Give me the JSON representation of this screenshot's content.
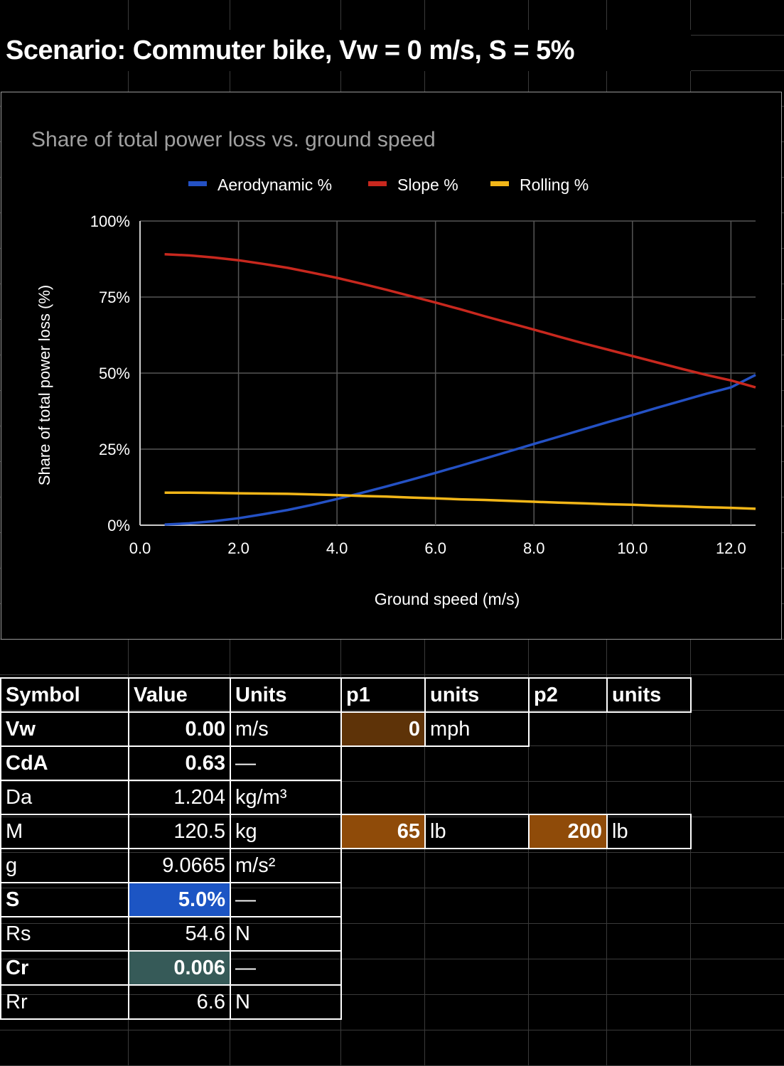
{
  "title": "Scenario: Commuter bike, Vw = 0 m/s, S = 5%",
  "colors": {
    "aero": "#2451c4",
    "slope": "#c8281e",
    "rolling": "#f2b618",
    "axis_text": "#ffffff",
    "chart_title": "#a0a0a0",
    "gridline": "#555555"
  },
  "chart_data": {
    "type": "line",
    "title": "Share of total power loss vs. ground speed",
    "xlabel": "Ground speed (m/s)",
    "ylabel": "Share of total power loss (%)",
    "xlim": [
      0,
      12.5
    ],
    "ylim": [
      0,
      100
    ],
    "x_ticks": [
      "0.0",
      "2.0",
      "4.0",
      "6.0",
      "8.0",
      "10.0",
      "12.0"
    ],
    "y_ticks": [
      "0%",
      "25%",
      "50%",
      "75%",
      "100%"
    ],
    "legend_position": "top",
    "grid": true,
    "x": [
      0.5,
      1,
      1.5,
      2,
      2.5,
      3,
      3.5,
      4,
      4.5,
      5,
      5.5,
      6,
      6.5,
      7,
      7.5,
      8,
      8.5,
      9,
      9.5,
      10,
      10.5,
      11,
      11.5,
      12,
      12.5
    ],
    "series": [
      {
        "name": "Aerodynamic %",
        "color": "#2451c4",
        "values": [
          0.2,
          0.6,
          1.3,
          2.3,
          3.6,
          5.0,
          6.7,
          8.6,
          10.6,
          12.7,
          14.9,
          17.2,
          19.5,
          21.9,
          24.3,
          26.7,
          29.1,
          31.5,
          33.9,
          36.2,
          38.6,
          40.9,
          43.2,
          45.3,
          49.4
        ]
      },
      {
        "name": "Slope %",
        "color": "#c8281e",
        "values": [
          89.1,
          88.7,
          88.0,
          87.1,
          85.9,
          84.6,
          83.0,
          81.3,
          79.4,
          77.4,
          75.3,
          73.2,
          71.0,
          68.7,
          66.5,
          64.3,
          62.0,
          59.8,
          57.7,
          55.6,
          53.5,
          51.4,
          49.4,
          47.6,
          45.3
        ]
      },
      {
        "name": "Rolling %",
        "color": "#f2b618",
        "values": [
          10.7,
          10.7,
          10.6,
          10.5,
          10.4,
          10.3,
          10.1,
          9.9,
          9.6,
          9.4,
          9.1,
          8.8,
          8.5,
          8.3,
          8.0,
          7.7,
          7.4,
          7.2,
          6.9,
          6.7,
          6.4,
          6.2,
          5.9,
          5.7,
          5.4
        ]
      }
    ]
  },
  "table": {
    "headers": [
      "Symbol",
      "Value",
      "Units",
      "p1",
      "units",
      "p2",
      "units"
    ],
    "rows": [
      {
        "symbol": "Vw",
        "value": "0.00",
        "units": "m/s",
        "p1": "0",
        "p1_units": "mph",
        "p2": "",
        "p2_units": ""
      },
      {
        "symbol": "CdA",
        "value": "0.63",
        "units": "—",
        "p1": "",
        "p1_units": "",
        "p2": "",
        "p2_units": ""
      },
      {
        "symbol": "Da",
        "value": "1.204",
        "units": "kg/m³",
        "p1": "",
        "p1_units": "",
        "p2": "",
        "p2_units": ""
      },
      {
        "symbol": "M",
        "value": "120.5",
        "units": "kg",
        "p1": "65",
        "p1_units": "lb",
        "p2": "200",
        "p2_units": "lb"
      },
      {
        "symbol": "g",
        "value": "9.0665",
        "units": "m/s²",
        "p1": "",
        "p1_units": "",
        "p2": "",
        "p2_units": ""
      },
      {
        "symbol": "S",
        "value": "5.0%",
        "units": "—",
        "p1": "",
        "p1_units": "",
        "p2": "",
        "p2_units": ""
      },
      {
        "symbol": "Rs",
        "value": "54.6",
        "units": "N",
        "p1": "",
        "p1_units": "",
        "p2": "",
        "p2_units": ""
      },
      {
        "symbol": "Cr",
        "value": "0.006",
        "units": "—",
        "p1": "",
        "p1_units": "",
        "p2": "",
        "p2_units": ""
      },
      {
        "symbol": "Rr",
        "value": "6.6",
        "units": "N",
        "p1": "",
        "p1_units": "",
        "p2": "",
        "p2_units": ""
      }
    ]
  }
}
